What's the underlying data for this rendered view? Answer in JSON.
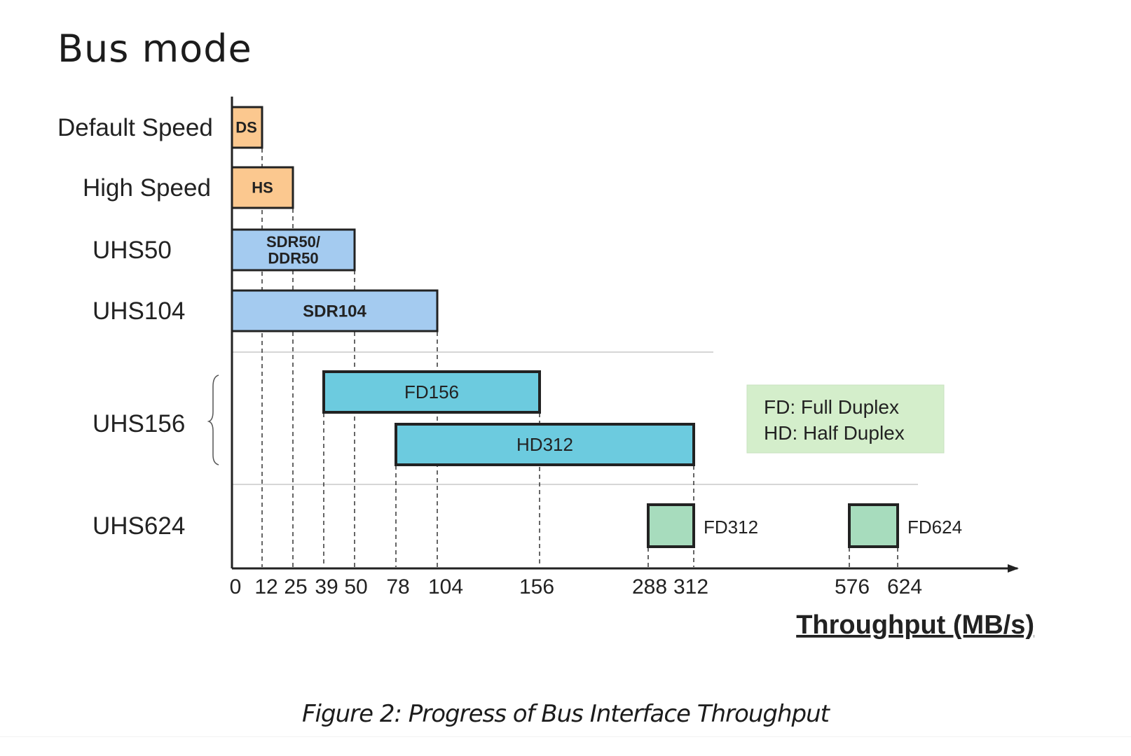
{
  "page": {
    "heading": "Bus mode",
    "caption": "Figure 2: Progress of Bus Interface Throughput"
  },
  "chart_data": {
    "type": "bar",
    "subtype": "horizontal range (floating) bar chart",
    "xlabel": "Throughput (MB/s)",
    "x_ticks": [
      0,
      12,
      25,
      39,
      50,
      78,
      104,
      156,
      288,
      312,
      576,
      624
    ],
    "x_tick_labels": [
      "0",
      "12",
      "25",
      "39",
      "50",
      "78",
      "104",
      "156",
      "288",
      "312",
      "576",
      "624"
    ],
    "axis_scale": "non-linear (tick positions are not proportional to values)",
    "categories": [
      "Default Speed",
      "High Speed",
      "UHS50",
      "UHS104",
      "UHS156",
      "UHS624"
    ],
    "bars": [
      {
        "category": "Default Speed",
        "label": "DS",
        "start": 0,
        "end": 12,
        "color": "#fbc88f",
        "label_position": "inside"
      },
      {
        "category": "High Speed",
        "label": "HS",
        "start": 0,
        "end": 25,
        "color": "#fbc88f",
        "label_position": "inside"
      },
      {
        "category": "UHS50",
        "label": "SDR50/\nDDR50",
        "start": 0,
        "end": 50,
        "color": "#a4cbf0",
        "label_position": "inside"
      },
      {
        "category": "UHS104",
        "label": "SDR104",
        "start": 0,
        "end": 104,
        "color": "#a4cbf0",
        "label_position": "inside"
      },
      {
        "category": "UHS156",
        "label": "FD156",
        "start": 39,
        "end": 156,
        "color": "#6ccbdf",
        "label_position": "inside"
      },
      {
        "category": "UHS156",
        "label": "HD312",
        "start": 78,
        "end": 312,
        "color": "#6ccbdf",
        "label_position": "inside"
      },
      {
        "category": "UHS624",
        "label": "FD312",
        "start": 288,
        "end": 312,
        "color": "#a7dcbd",
        "label_position": "right"
      },
      {
        "category": "UHS624",
        "label": "FD624",
        "start": 576,
        "end": 624,
        "color": "#a7dcbd",
        "label_position": "right"
      }
    ],
    "guide_lines": [
      12,
      25,
      39,
      50,
      78,
      104,
      156,
      288,
      312,
      576,
      624
    ],
    "legend": {
      "position": "right",
      "entries": [
        "FD: Full Duplex",
        "HD: Half Duplex"
      ],
      "background": "#d4eecb"
    },
    "separators_after": [
      "UHS104",
      "UHS156"
    ],
    "grid": false
  }
}
